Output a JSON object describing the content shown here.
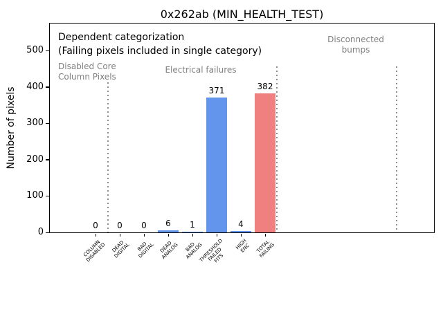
{
  "chart_data": {
    "type": "bar",
    "title": "0x262ab (MIN_HEALTH_TEST)",
    "ylabel": "Number of pixels",
    "xlabel": "",
    "categories": [
      [
        "COLUMN",
        "DISABLED"
      ],
      [
        "DEAD",
        "DIGITAL"
      ],
      [
        "BAD",
        "DIGITAL"
      ],
      [
        "DEAD",
        "ANALOG"
      ],
      [
        "BAD",
        "ANALOG"
      ],
      [
        "THRESHOLD",
        "FAILED",
        "FITS"
      ],
      [
        "HIGH",
        "ENC"
      ],
      [
        "TOTAL",
        "FAILING"
      ]
    ],
    "values": [
      0,
      0,
      0,
      6,
      1,
      371,
      4,
      382
    ],
    "bar_colors": [
      "#6495ed",
      "#6495ed",
      "#6495ed",
      "#6495ed",
      "#6495ed",
      "#6495ed",
      "#6495ed",
      "#f08080"
    ],
    "yticks": [
      0,
      100,
      200,
      300,
      400,
      500
    ],
    "ylim": [
      0,
      575
    ],
    "grid": "off",
    "legend": "none",
    "annotations": {
      "dependent_line1": "Dependent categorization",
      "dependent_line2": "(Failing pixels included in single category)",
      "region_disabled_line1": "Disabled Core",
      "region_disabled_line2": "Column Pixels",
      "region_electrical": "Electrical failures",
      "region_disconnected_line1": "Disconnected",
      "region_disconnected_line2": "bumps",
      "annotation_color": "#7f7f7f"
    },
    "colors": {
      "bar_blue": "#6495ed",
      "bar_red": "#f08080",
      "separator_gray": "#8c8c8c"
    }
  }
}
